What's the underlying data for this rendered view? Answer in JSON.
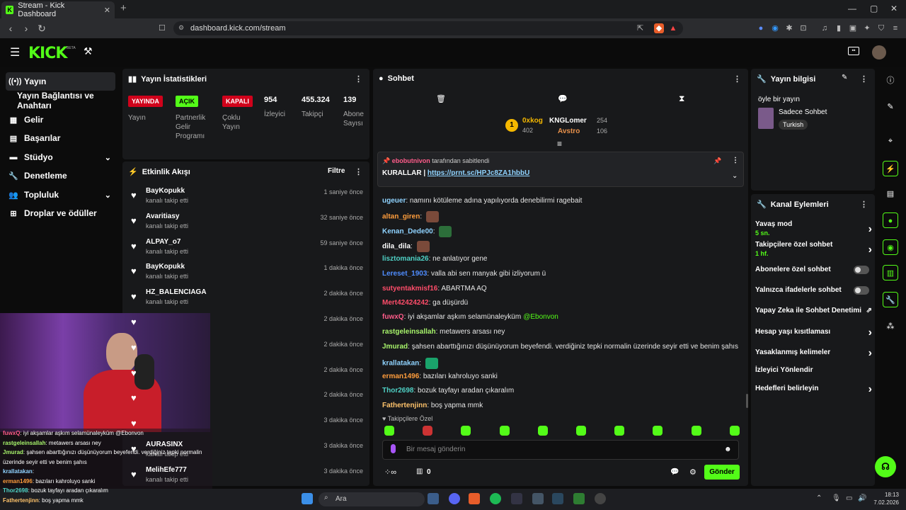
{
  "browser": {
    "tab_title": "Stream - Kick Dashboard",
    "url": "dashboard.kick.com/stream"
  },
  "sidebar": {
    "items": [
      {
        "label": "Yayın",
        "icon": "broadcast-icon"
      },
      {
        "label": "Yayın Bağlantısı ve Anahtarı",
        "icon": ""
      },
      {
        "label": "Gelir",
        "icon": "revenue-icon"
      },
      {
        "label": "Başarılar",
        "icon": "achievements-icon"
      },
      {
        "label": "Stüdyo",
        "icon": "studio-icon"
      },
      {
        "label": "Denetleme",
        "icon": "moderation-icon"
      },
      {
        "label": "Topluluk",
        "icon": "community-icon"
      },
      {
        "label": "Droplar ve ödüller",
        "icon": "drops-icon"
      }
    ]
  },
  "stats": {
    "title": "Yayın İstatistikleri",
    "badges": [
      {
        "text": "YAYINDA",
        "label": "Yayın"
      },
      {
        "text": "AÇIK",
        "label": "Partnerlik Gelir Programı"
      },
      {
        "text": "KAPALI",
        "label": "Çoklu Yayın"
      }
    ],
    "numbers": [
      {
        "value": "954",
        "label": "İzleyici"
      },
      {
        "value": "455.324",
        "label": "Takipçi"
      },
      {
        "value": "139",
        "label": "Abone Sayısı"
      }
    ]
  },
  "activity": {
    "title": "Etkinlik Akışı",
    "filter": "Filtre",
    "items": [
      {
        "name": "BayKopukk",
        "sub": "kanalı takip etti",
        "time": "1 saniye önce"
      },
      {
        "name": "Avaritiasy",
        "sub": "kanalı takip etti",
        "time": "32 saniye önce"
      },
      {
        "name": "ALPAY_o7",
        "sub": "kanalı takip etti",
        "time": "59 saniye önce"
      },
      {
        "name": "BayKopukk",
        "sub": "kanalı takip etti",
        "time": "1 dakika önce"
      },
      {
        "name": "HZ_BALENCIAGA",
        "sub": "kanalı takip etti",
        "time": "2 dakika önce"
      },
      {
        "name": "",
        "sub": "",
        "time": "2 dakika önce"
      },
      {
        "name": "",
        "sub": "",
        "time": "2 dakika önce"
      },
      {
        "name": "",
        "sub": "",
        "time": "2 dakika önce"
      },
      {
        "name": "",
        "sub": "",
        "time": "2 dakika önce"
      },
      {
        "name": "",
        "sub": "",
        "time": "3 dakika önce"
      },
      {
        "name": "AURASINX",
        "sub": "kanalı takip etti",
        "time": "3 dakika önce"
      },
      {
        "name": "MelihEfe777",
        "sub": "kanalı takip etti",
        "time": "3 dakika önce"
      }
    ]
  },
  "chat": {
    "title": "Sohbet",
    "leaders": [
      {
        "name": "0xkog",
        "score": "402"
      },
      {
        "name": "KNGLomer",
        "score": "254"
      },
      {
        "name": "Avstro",
        "score": "106"
      }
    ],
    "pinned": {
      "by": "ebobutnivon",
      "suffix": "tarafından sabitlendi",
      "prefix": "KURALLAR |",
      "link": "https://prnt.sc/HPJc8ZA1hbbU"
    },
    "messages": [
      {
        "user": "ugeuer",
        "color": "#8fd3ff",
        "text": "namını kötüleme adına yapılıyorda denebilirmi ragebait"
      },
      {
        "user": "altan_giren",
        "color": "#ff9d3c",
        "text": ""
      },
      {
        "user": "Kenan_Dede00",
        "color": "#8fd3ff",
        "text": ""
      },
      {
        "user": "dila_dila",
        "color": "#ffffff",
        "text": ""
      },
      {
        "user": "lisztomania26",
        "color": "#4fd1c5",
        "text": "ne anlatıyor gene"
      },
      {
        "user": "Lereset_1903",
        "color": "#4f8dff",
        "text": "valla abi sen manyak gibi izliyorum ü"
      },
      {
        "user": "sutyentakmisf16",
        "color": "#ff4d6a",
        "text": "ABARTMA AQ"
      },
      {
        "user": "Mert42424242",
        "color": "#ff4d6a",
        "text": "ga düşürdü"
      },
      {
        "user": "fuwxQ",
        "color": "#ff5c8a",
        "text": "iyi akşamlar aşkım selamünaleyküm",
        "mention": "@Ebonvon"
      },
      {
        "user": "rastgeleinsallah",
        "color": "#a7f36b",
        "text": "metawers arsası ney"
      },
      {
        "user": "Jmurad",
        "color": "#a7f36b",
        "text": "şahsen abarttığınızı düşünüyorum beyefendi. verdiğiniz tepki normalin üzerinde seyir etti ve benim şahıs"
      },
      {
        "user": "krallatakan",
        "color": "#8fd3ff",
        "text": ""
      },
      {
        "user": "erman1496",
        "color": "#ff9d3c",
        "text": "bazıları kahroluyo sanki"
      },
      {
        "user": "Thor2698",
        "color": "#4fd1c5",
        "text": "bozuk tayfayı aradan çıkaralım"
      },
      {
        "user": "Fathertenjinn",
        "color": "#ffc36b",
        "text": "boş yapma mmk"
      }
    ],
    "followers_only": "Takipçilere Özel",
    "input_placeholder": "Bir mesaj gönderin",
    "points": "0",
    "send": "Gönder"
  },
  "info": {
    "title": "Yayın bilgisi",
    "stream_title": "öyle bir yayın",
    "category": "Sadece Sohbet",
    "tag": "Turkish"
  },
  "actions": {
    "title": "Kanal Eylemleri",
    "items": [
      {
        "label": "Yavaş mod",
        "sub": "5 sn.",
        "kind": "chevron"
      },
      {
        "label": "Takipçilere özel sohbet",
        "sub": "1 hf.",
        "kind": "chevron"
      },
      {
        "label": "Abonelere özel sohbet",
        "sub": "",
        "kind": "toggle"
      },
      {
        "label": "Yalnızca ifadelerle sohbet",
        "sub": "",
        "kind": "toggle"
      },
      {
        "label": "Yapay Zeka ile Sohbet Denetimi",
        "sub": "",
        "kind": "external"
      },
      {
        "label": "Hesap yaşı kısıtlaması",
        "sub": "",
        "kind": "chevron"
      },
      {
        "label": "Yasaklanmış kelimeler",
        "sub": "",
        "kind": "chevron"
      },
      {
        "label": "İzleyici Yönlendir",
        "sub": "",
        "kind": "none"
      },
      {
        "label": "Hedefleri belirleyin",
        "sub": "",
        "kind": "chevron"
      }
    ]
  },
  "overlay": {
    "lines": [
      {
        "user": "fuwxQ",
        "text": ": iyi akşamlar aşkım selamünaleyküm @Ebonvon"
      },
      {
        "user": "rastgeleinsallah",
        "text": ": metawers arsası ney"
      },
      {
        "user": "Jmurad",
        "text": ": şahsen abarttığınızı düşünüyorum beyefendi. verdiğiniz tepki normalin"
      },
      {
        "user": "",
        "text": "üzerinde seyir etti ve benim şahıs"
      },
      {
        "user": "krallatakan",
        "text": ":"
      },
      {
        "user": "erman1496",
        "text": ": bazıları kahroluyo sanki"
      },
      {
        "user": "Thor2698",
        "text": ": bozuk tayfayı aradan çıkaralım"
      },
      {
        "user": "Fathertenjinn",
        "text": ": boş yapma mmk"
      }
    ]
  },
  "taskbar": {
    "search": "Ara",
    "time": "18:13",
    "date": "7.02.2026"
  },
  "colors": {
    "accent": "#53fc18",
    "panel": "#18191b",
    "live": "#d0021b"
  }
}
